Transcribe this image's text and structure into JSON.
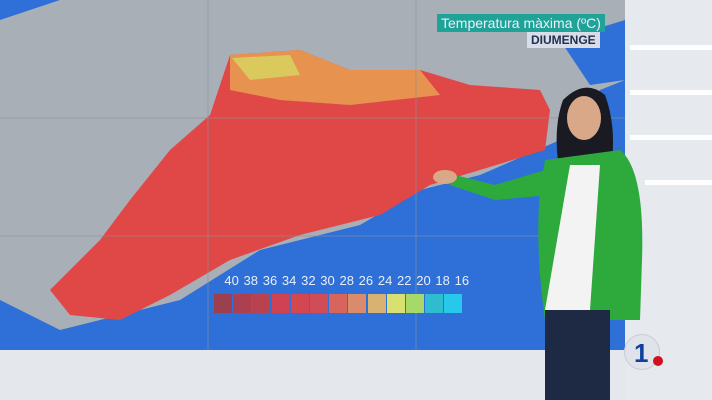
{
  "map": {
    "title": "Temperatura màxima (ºC)",
    "day": "DIUMENGE",
    "legend": {
      "labels": [
        "40",
        "38",
        "36",
        "34",
        "32",
        "30",
        "28",
        "26",
        "24",
        "22",
        "20",
        "18",
        "16"
      ],
      "colors": [
        "#9c4050",
        "#ad4050",
        "#b8434f",
        "#d04252",
        "#d44650",
        "#d04c56",
        "#d8645e",
        "#d88c6c",
        "#d8b272",
        "#d8e070",
        "#a8d868",
        "#30bcd0",
        "#28c8ea"
      ]
    }
  },
  "colors": {
    "sea": "#2f6fd8",
    "land": "#a8aeb6",
    "hot": "#e04848",
    "studio": "#dfe3e8",
    "jacket": "#2eaa3c"
  },
  "logo": {
    "text": "1"
  }
}
